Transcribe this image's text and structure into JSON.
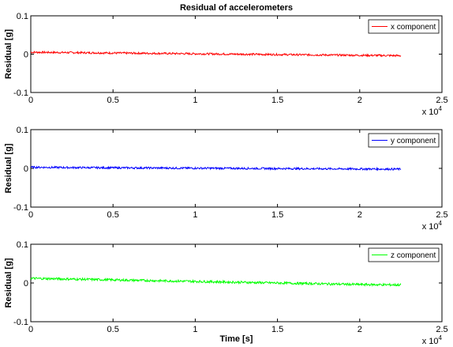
{
  "chart_data": [
    {
      "type": "line",
      "title": "Residual of accelerometers",
      "xlabel": "",
      "ylabel": "Residual [g]",
      "xlim": [
        0,
        25000
      ],
      "ylim": [
        -0.1,
        0.1
      ],
      "x_ticks": [
        "0",
        "0.5",
        "1",
        "1.5",
        "2",
        "2.5"
      ],
      "x_exponent": "x 10",
      "x_exponent_power": "4",
      "y_ticks": [
        "0.1",
        "0",
        "-0.1"
      ],
      "grid": false,
      "legend_position": "top-right",
      "series": [
        {
          "name": "x component",
          "color": "#ff0000",
          "x": [
            0,
            2500,
            5000,
            7500,
            10000,
            12500,
            15000,
            17500,
            20000,
            22500
          ],
          "y": [
            0.005,
            0.004,
            0.003,
            0.002,
            0.001,
            0.0,
            -0.001,
            -0.002,
            -0.003,
            -0.004
          ],
          "noise": 0.0025
        }
      ]
    },
    {
      "type": "line",
      "title": "",
      "xlabel": "",
      "ylabel": "Residual [g]",
      "xlim": [
        0,
        25000
      ],
      "ylim": [
        -0.1,
        0.1
      ],
      "x_ticks": [
        "0",
        "0.5",
        "1",
        "1.5",
        "2",
        "2.5"
      ],
      "x_exponent": "x 10",
      "x_exponent_power": "4",
      "y_ticks": [
        "0.1",
        "0",
        "-0.1"
      ],
      "grid": false,
      "legend_position": "top-right",
      "series": [
        {
          "name": "y component",
          "color": "#0000ff",
          "x": [
            0,
            2500,
            5000,
            7500,
            10000,
            12500,
            15000,
            17500,
            20000,
            22500
          ],
          "y": [
            0.003,
            0.002,
            0.0015,
            0.001,
            0.0005,
            0.0,
            -0.0005,
            -0.001,
            -0.0015,
            -0.002
          ],
          "noise": 0.0025
        }
      ]
    },
    {
      "type": "line",
      "title": "",
      "xlabel": "Time [s]",
      "ylabel": "Residual [g]",
      "xlim": [
        0,
        25000
      ],
      "ylim": [
        -0.1,
        0.1
      ],
      "x_ticks": [
        "0",
        "0.5",
        "1",
        "1.5",
        "2",
        "2.5"
      ],
      "x_exponent": "x 10",
      "x_exponent_power": "4",
      "y_ticks": [
        "0.1",
        "0",
        "-0.1"
      ],
      "grid": false,
      "legend_position": "top-right",
      "series": [
        {
          "name": "z component",
          "color": "#00ff00",
          "x": [
            0,
            2500,
            5000,
            7500,
            10000,
            12500,
            15000,
            17500,
            20000,
            22500
          ],
          "y": [
            0.012,
            0.01,
            0.008,
            0.006,
            0.004,
            0.002,
            0.0,
            -0.002,
            -0.004,
            -0.005
          ],
          "noise": 0.003
        }
      ]
    }
  ]
}
